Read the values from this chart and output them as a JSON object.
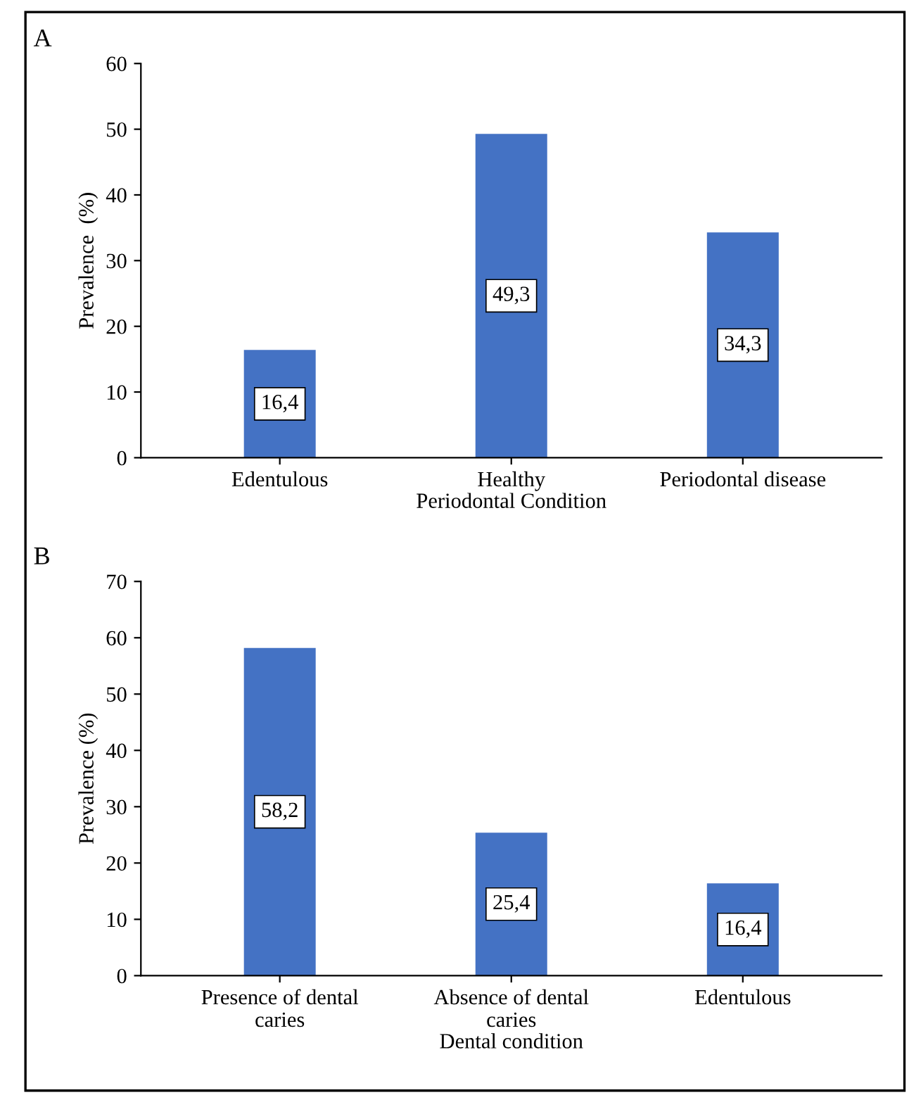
{
  "chart_data": [
    {
      "type": "bar",
      "title": "A",
      "xlabel": "Periodontal Condition",
      "ylabel": "Prevalence  (%)",
      "categories": [
        "Edentulous",
        "Healthy",
        "Periodontal disease"
      ],
      "values": [
        16.4,
        49.3,
        34.3
      ],
      "value_labels": [
        "16,4",
        "49,3",
        "34,3"
      ],
      "color": "#4472c4",
      "ylim": [
        0,
        60
      ],
      "yticks": [
        0,
        10,
        20,
        30,
        40,
        50,
        60
      ],
      "grid": false,
      "legend": false
    },
    {
      "type": "bar",
      "title": "B",
      "xlabel": "Dental condition",
      "ylabel": "Prevalence (%)",
      "categories": [
        "Presence of dental\ncaries",
        "Absence of dental\ncaries",
        "Edentulous"
      ],
      "values": [
        58.2,
        25.4,
        16.4
      ],
      "value_labels": [
        "58,2",
        "25,4",
        "16,4"
      ],
      "color": "#4472c4",
      "ylim": [
        0,
        70
      ],
      "yticks": [
        0,
        10,
        20,
        30,
        40,
        50,
        60,
        70
      ],
      "grid": false,
      "legend": false
    }
  ]
}
